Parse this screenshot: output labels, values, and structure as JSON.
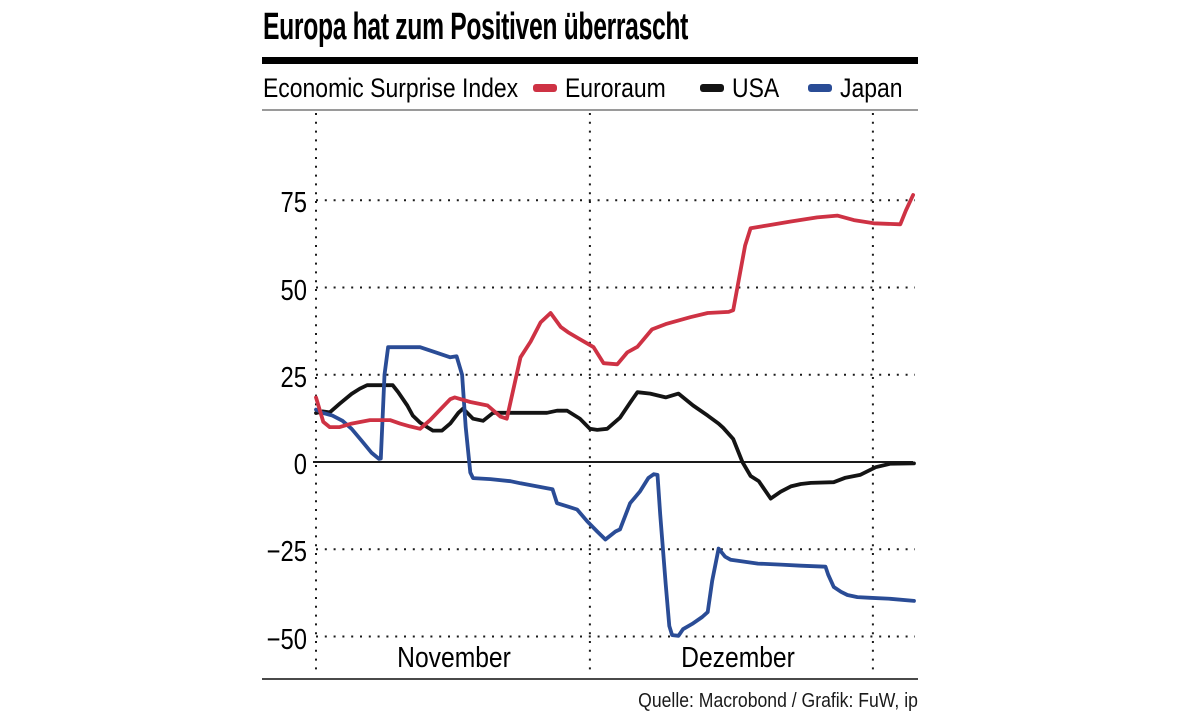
{
  "title": "Europa hat zum Positiven überrascht",
  "legend": {
    "index_label": "Economic Surprise Index"
  },
  "source": "Quelle: Macrobond / Grafik: FuW, ip",
  "chart_data": {
    "type": "line",
    "title": "Europa hat zum Positiven überrascht",
    "subtitle": "Economic Surprise Index",
    "x_axis": {
      "unit": "days from 1 November",
      "range": [
        0,
        65.5
      ],
      "gridline_days": [
        0,
        30,
        61
      ],
      "month_labels": [
        {
          "label": "November",
          "center_day": 15.1
        },
        {
          "label": "Dezember",
          "center_day": 46.2
        }
      ]
    },
    "y_axis": {
      "ticks": [
        75,
        50,
        25,
        0,
        -25,
        -50
      ],
      "range": [
        -56,
        84
      ],
      "zero_line_solid": true,
      "grid": "dotted"
    },
    "series": [
      {
        "name": "Euroraum",
        "color": "#ce3244",
        "points": [
          [
            0,
            18.5
          ],
          [
            0.8,
            11.5
          ],
          [
            1.5,
            10
          ],
          [
            2.6,
            10
          ],
          [
            3.9,
            11
          ],
          [
            5.9,
            12
          ],
          [
            8.1,
            12
          ],
          [
            9.2,
            11
          ],
          [
            10.3,
            10.2
          ],
          [
            11.4,
            9.5
          ],
          [
            12.5,
            12
          ],
          [
            13.6,
            15
          ],
          [
            14.7,
            18
          ],
          [
            15.2,
            18.5
          ],
          [
            16.9,
            17.2
          ],
          [
            18.8,
            16.2
          ],
          [
            20.2,
            13
          ],
          [
            20.9,
            12.4
          ],
          [
            22.4,
            30
          ],
          [
            23.5,
            34.5
          ],
          [
            24.6,
            40
          ],
          [
            25.7,
            42.7
          ],
          [
            26.8,
            38.7
          ],
          [
            27.6,
            37.2
          ],
          [
            28.7,
            35.5
          ],
          [
            30.4,
            32.9
          ],
          [
            31.5,
            28.3
          ],
          [
            33,
            28
          ],
          [
            34.1,
            31.4
          ],
          [
            35.2,
            33
          ],
          [
            36.8,
            38
          ],
          [
            38.3,
            39.5
          ],
          [
            41,
            41.5
          ],
          [
            42.9,
            42.7
          ],
          [
            45.2,
            43
          ],
          [
            45.7,
            43.5
          ],
          [
            47,
            62
          ],
          [
            47.6,
            67
          ],
          [
            49.5,
            67.8
          ],
          [
            52,
            68.9
          ],
          [
            54.9,
            70.1
          ],
          [
            57.1,
            70.6
          ],
          [
            58.9,
            69.3
          ],
          [
            61.1,
            68.4
          ],
          [
            64,
            68.1
          ],
          [
            64.6,
            72
          ],
          [
            65.4,
            76.5
          ]
        ]
      },
      {
        "name": "USA",
        "color": "#141414",
        "points": [
          [
            0,
            14
          ],
          [
            0.7,
            14.5
          ],
          [
            1.5,
            14.2
          ],
          [
            2.6,
            16.7
          ],
          [
            3.9,
            19.5
          ],
          [
            4.8,
            21
          ],
          [
            5.6,
            22
          ],
          [
            8.4,
            22
          ],
          [
            9,
            20
          ],
          [
            10,
            16.2
          ],
          [
            10.6,
            13.3
          ],
          [
            11.4,
            11.3
          ],
          [
            12.3,
            9.8
          ],
          [
            12.8,
            9
          ],
          [
            13.8,
            9
          ],
          [
            14.7,
            11
          ],
          [
            15.6,
            14.1
          ],
          [
            16.1,
            15.3
          ],
          [
            17.2,
            12.4
          ],
          [
            18.3,
            11.8
          ],
          [
            19.4,
            14.1
          ],
          [
            25.3,
            14.1
          ],
          [
            26.4,
            14.7
          ],
          [
            27.5,
            14.7
          ],
          [
            28.9,
            12.4
          ],
          [
            30,
            9.5
          ],
          [
            30.8,
            9.2
          ],
          [
            31.9,
            9.5
          ],
          [
            33.3,
            12.7
          ],
          [
            34.4,
            17
          ],
          [
            35.2,
            20
          ],
          [
            36.6,
            19.6
          ],
          [
            38.3,
            18.5
          ],
          [
            39.7,
            19.6
          ],
          [
            41.3,
            16.2
          ],
          [
            42.9,
            13.3
          ],
          [
            44.1,
            11
          ],
          [
            44.6,
            9.8
          ],
          [
            45.7,
            6.6
          ],
          [
            46.7,
            0
          ],
          [
            47.6,
            -4
          ],
          [
            48.5,
            -5.5
          ],
          [
            49.8,
            -10.5
          ],
          [
            50.9,
            -8.5
          ],
          [
            52,
            -7
          ],
          [
            53.1,
            -6.3
          ],
          [
            54.2,
            -6
          ],
          [
            56.7,
            -5.8
          ],
          [
            58,
            -4.5
          ],
          [
            59.6,
            -3.7
          ],
          [
            61.3,
            -1.5
          ],
          [
            62.9,
            -0.5
          ],
          [
            65.5,
            -0.4
          ]
        ]
      },
      {
        "name": "Japan",
        "color": "#2a4c96",
        "points": [
          [
            0,
            15
          ],
          [
            0.7,
            14.1
          ],
          [
            1.8,
            13.3
          ],
          [
            2.9,
            11.8
          ],
          [
            3.9,
            9.5
          ],
          [
            5,
            6.1
          ],
          [
            6.1,
            2.6
          ],
          [
            6.9,
            0.9
          ],
          [
            7.1,
            1
          ],
          [
            7.5,
            25
          ],
          [
            7.9,
            32.9
          ],
          [
            8.9,
            32.9
          ],
          [
            11.4,
            32.9
          ],
          [
            13,
            31.5
          ],
          [
            14.7,
            30
          ],
          [
            15.4,
            30.3
          ],
          [
            16,
            25
          ],
          [
            16.4,
            10
          ],
          [
            16.9,
            -3
          ],
          [
            17.2,
            -4.6
          ],
          [
            19.1,
            -4.9
          ],
          [
            21.3,
            -5.5
          ],
          [
            22.4,
            -6.1
          ],
          [
            25.3,
            -7.5
          ],
          [
            25.9,
            -7.8
          ],
          [
            26.4,
            -11.8
          ],
          [
            27.5,
            -12.7
          ],
          [
            28.6,
            -13.6
          ],
          [
            29.7,
            -17
          ],
          [
            30.8,
            -19.9
          ],
          [
            31.7,
            -22.2
          ],
          [
            32.8,
            -19.9
          ],
          [
            33.3,
            -19.3
          ],
          [
            34.4,
            -11.8
          ],
          [
            35.5,
            -8.4
          ],
          [
            36.4,
            -4.6
          ],
          [
            37,
            -3.5
          ],
          [
            37.4,
            -3.7
          ],
          [
            37.7,
            -15
          ],
          [
            38.3,
            -35
          ],
          [
            38.7,
            -47
          ],
          [
            39,
            -49.6
          ],
          [
            39.7,
            -49.8
          ],
          [
            40.2,
            -47.9
          ],
          [
            41.2,
            -46.4
          ],
          [
            42.3,
            -44.4
          ],
          [
            42.9,
            -43
          ],
          [
            43.4,
            -34
          ],
          [
            44.1,
            -24.8
          ],
          [
            44.8,
            -27.1
          ],
          [
            45.4,
            -28
          ],
          [
            46.2,
            -28.3
          ],
          [
            48.4,
            -29.1
          ],
          [
            50.9,
            -29.4
          ],
          [
            53.1,
            -29.7
          ],
          [
            55.8,
            -30
          ],
          [
            56.1,
            -32.3
          ],
          [
            56.7,
            -35.8
          ],
          [
            57.5,
            -37.2
          ],
          [
            58.2,
            -38.1
          ],
          [
            59.3,
            -38.7
          ],
          [
            60.7,
            -38.9
          ],
          [
            62.9,
            -39.2
          ],
          [
            65.5,
            -39.8
          ]
        ]
      }
    ],
    "source": "Quelle: Macrobond / Grafik: FuW, ip"
  }
}
